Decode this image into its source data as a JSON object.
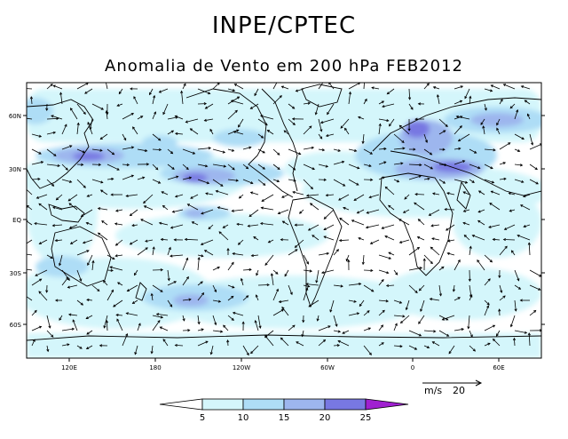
{
  "header": {
    "title": "INPE/CPTEC",
    "subtitle": "Anomalia de Vento em 200 hPa FEB2012"
  },
  "map": {
    "lat_labels": [
      "60N",
      "30N",
      "EQ",
      "30S",
      "60S"
    ],
    "lon_labels": [
      "120E",
      "180",
      "120W",
      "60W",
      "0",
      "60E"
    ],
    "reference_vector": {
      "units": "m/s",
      "value": "20"
    }
  },
  "colorbar": {
    "levels": [
      "5",
      "10",
      "15",
      "20",
      "25"
    ],
    "colors": [
      "#ffffff",
      "#d4f6fb",
      "#aeddf6",
      "#9db6ee",
      "#7878e2",
      "#4b4bd0",
      "#a020d0"
    ]
  }
}
